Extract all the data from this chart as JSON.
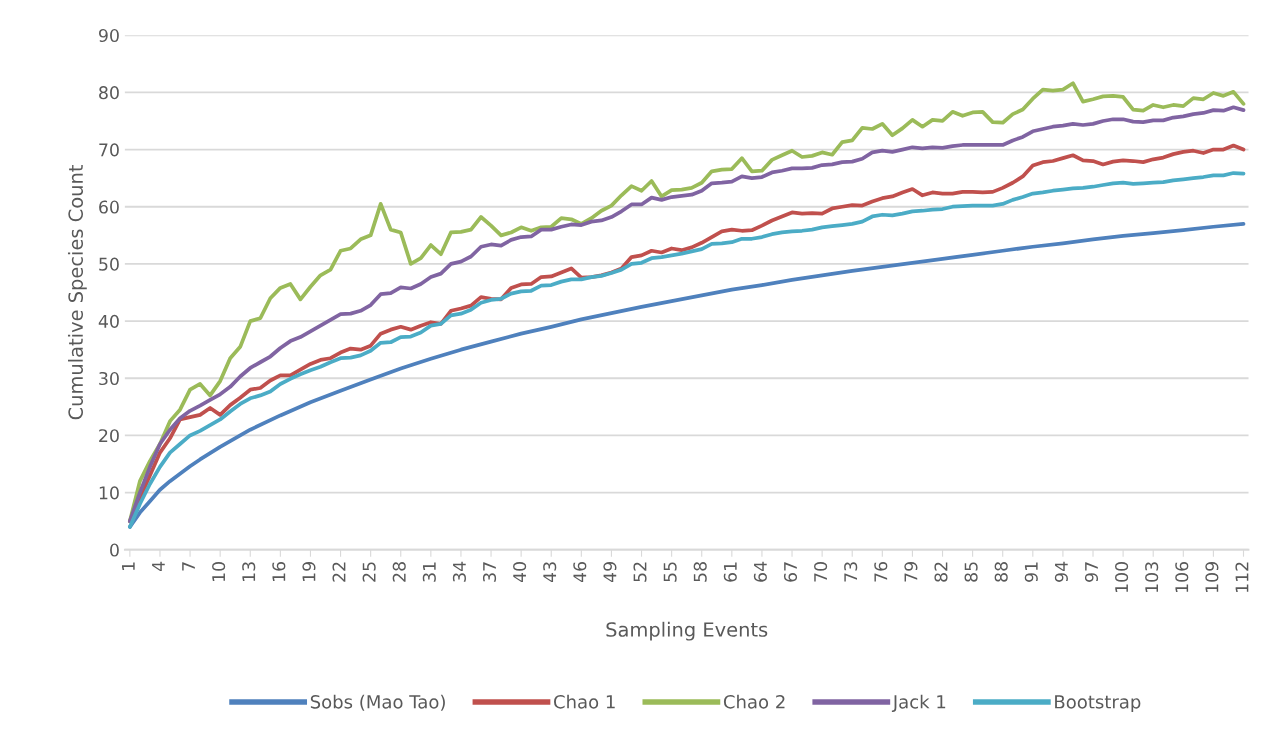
{
  "chart_data": {
    "type": "line",
    "xlabel": "Sampling Events",
    "ylabel": "Cumulative Species Count",
    "x": [
      1,
      2,
      3,
      4,
      5,
      6,
      7,
      8,
      9,
      10,
      11,
      12,
      13,
      14,
      15,
      16,
      17,
      18,
      19,
      20,
      21,
      22,
      23,
      24,
      25,
      26,
      27,
      28,
      29,
      30,
      31,
      32,
      33,
      34,
      35,
      36,
      37,
      38,
      39,
      40,
      41,
      42,
      43,
      44,
      45,
      46,
      47,
      48,
      49,
      50,
      51,
      52,
      53,
      54,
      55,
      56,
      57,
      58,
      59,
      60,
      61,
      62,
      63,
      64,
      65,
      66,
      67,
      68,
      69,
      70,
      71,
      72,
      73,
      74,
      75,
      76,
      77,
      78,
      79,
      80,
      81,
      82,
      83,
      84,
      85,
      86,
      87,
      88,
      89,
      90,
      91,
      92,
      93,
      94,
      95,
      96,
      97,
      98,
      99,
      100,
      101,
      102,
      103,
      104,
      105,
      106,
      107,
      108,
      109,
      110,
      111,
      112
    ],
    "xlim": [
      0.5,
      112.5
    ],
    "xticks": [
      1,
      4,
      7,
      10,
      13,
      16,
      19,
      22,
      25,
      28,
      31,
      34,
      37,
      40,
      43,
      46,
      49,
      52,
      55,
      58,
      61,
      64,
      67,
      70,
      73,
      76,
      79,
      82,
      85,
      88,
      91,
      94,
      97,
      100,
      103,
      106,
      109,
      112
    ],
    "ylim": [
      0,
      90
    ],
    "yticks": [
      0,
      10,
      20,
      30,
      40,
      50,
      60,
      70,
      80,
      90
    ],
    "grid": "y",
    "legend": "bottom",
    "marker": "none",
    "line_style": "solid",
    "series": [
      {
        "name": "Sobs (Mao Tao)",
        "color": "#4f81bd",
        "x": [
          1,
          2,
          3,
          4,
          5,
          6,
          7,
          8,
          10,
          13,
          16,
          19,
          22,
          25,
          28,
          31,
          34,
          37,
          40,
          43,
          46,
          49,
          52,
          55,
          58,
          61,
          64,
          67,
          70,
          73,
          76,
          79,
          82,
          85,
          88,
          91,
          94,
          97,
          100,
          103,
          106,
          109,
          112
        ],
        "values": [
          4,
          6.5,
          8.5,
          10.5,
          12,
          13.3,
          14.6,
          15.8,
          18,
          21,
          23.5,
          25.8,
          27.8,
          29.8,
          31.7,
          33.4,
          35,
          36.4,
          37.8,
          39,
          40.3,
          41.4,
          42.5,
          43.5,
          44.5,
          45.5,
          46.3,
          47.2,
          48,
          48.8,
          49.5,
          50.2,
          50.9,
          51.6,
          52.3,
          53,
          53.6,
          54.3,
          54.9,
          55.4,
          55.9,
          56.5,
          57
        ]
      },
      {
        "name": "Chao 1",
        "color": "#c0504d",
        "values": [
          5,
          9,
          13,
          17,
          19.5,
          22.8,
          23.2,
          23.6,
          24.8,
          23.6,
          25.3,
          26.6,
          28,
          28.3,
          29.6,
          30.5,
          30.5,
          31.5,
          32.5,
          33.2,
          33.5,
          34.5,
          35.2,
          35,
          35.7,
          37.8,
          38.5,
          39,
          38.5,
          39.2,
          39.8,
          39.5,
          41.8,
          42.2,
          42.7,
          44.2,
          43.9,
          43.8,
          45.8,
          46.4,
          46.5,
          47.7,
          47.8,
          48.5,
          49.2,
          47.6,
          47.7,
          48,
          48.5,
          49.2,
          51.2,
          51.5,
          52.3,
          52,
          52.7,
          52.4,
          52.9,
          53.7,
          54.7,
          55.7,
          56,
          55.8,
          55.9,
          56.7,
          57.6,
          58.3,
          59,
          58.8,
          58.9,
          58.8,
          59.7,
          60,
          60.3,
          60.2,
          60.9,
          61.5,
          61.8,
          62.5,
          63.1,
          62,
          62.5,
          62.3,
          62.3,
          62.6,
          62.6,
          62.5,
          62.6,
          63.3,
          64.2,
          65.3,
          67.2,
          67.8,
          68,
          68.5,
          69,
          68.1,
          68,
          67.4,
          67.9,
          68.1,
          68,
          67.8,
          68.3,
          68.6,
          69.2,
          69.6,
          69.8,
          69.4,
          70,
          70,
          70.7,
          70
        ]
      },
      {
        "name": "Chao 2",
        "color": "#9bbb59",
        "values": [
          5,
          12,
          15.5,
          18.5,
          22.5,
          24.5,
          28,
          29,
          27,
          29.5,
          33.5,
          35.5,
          40,
          40.5,
          44,
          45.8,
          46.5,
          43.8,
          46,
          48,
          49,
          52.3,
          52.7,
          54.3,
          55,
          60.5,
          56,
          55.5,
          50,
          51,
          53.3,
          51.7,
          55.5,
          55.6,
          56,
          58.2,
          56.7,
          55,
          55.5,
          56.4,
          55.8,
          56.4,
          56.5,
          58,
          57.8,
          57,
          58,
          59.3,
          60.2,
          62,
          63.6,
          62.8,
          64.5,
          61.8,
          62.9,
          63,
          63.3,
          64.2,
          66.2,
          66.5,
          66.6,
          68.5,
          66.2,
          66.3,
          68.2,
          69,
          69.8,
          68.7,
          68.9,
          69.5,
          69.1,
          71.3,
          71.6,
          73.8,
          73.6,
          74.5,
          72.5,
          73.7,
          75.2,
          74,
          75.2,
          75,
          76.6,
          75.9,
          76.5,
          76.6,
          74.8,
          74.7,
          76.2,
          77,
          78.9,
          80.5,
          80.3,
          80.5,
          81.6,
          78.4,
          78.8,
          79.3,
          79.4,
          79.2,
          77,
          76.8,
          77.8,
          77.4,
          77.8,
          77.6,
          79,
          78.8,
          79.9,
          79.4,
          80.1,
          78
        ]
      },
      {
        "name": "Jack 1",
        "color": "#8064a2",
        "values": [
          5,
          10,
          14.5,
          18.5,
          21,
          23,
          24.3,
          25.2,
          26.2,
          27.2,
          28.5,
          30.3,
          31.8,
          32.8,
          33.8,
          35.3,
          36.5,
          37.2,
          38.2,
          39.2,
          40.2,
          41.2,
          41.3,
          41.8,
          42.8,
          44.7,
          44.9,
          45.9,
          45.7,
          46.5,
          47.7,
          48.3,
          50,
          50.4,
          51.3,
          53,
          53.4,
          53.2,
          54.2,
          54.7,
          54.8,
          56,
          56,
          56.5,
          56.9,
          56.8,
          57.4,
          57.6,
          58.2,
          59.2,
          60.4,
          60.4,
          61.6,
          61.2,
          61.7,
          61.9,
          62.1,
          62.8,
          64.1,
          64.2,
          64.4,
          65.3,
          65,
          65.2,
          66,
          66.3,
          66.7,
          66.7,
          66.8,
          67.3,
          67.4,
          67.8,
          67.9,
          68.4,
          69.5,
          69.8,
          69.6,
          70,
          70.4,
          70.2,
          70.4,
          70.3,
          70.6,
          70.8,
          70.8,
          70.8,
          70.8,
          70.8,
          71.6,
          72.2,
          73.2,
          73.6,
          74,
          74.2,
          74.5,
          74.3,
          74.5,
          75,
          75.3,
          75.3,
          74.9,
          74.8,
          75.1,
          75.1,
          75.6,
          75.8,
          76.2,
          76.4,
          76.9,
          76.8,
          77.4,
          76.9
        ]
      },
      {
        "name": "Bootstrap",
        "color": "#4bacc6",
        "values": [
          4,
          8,
          11.5,
          14.5,
          17,
          18.5,
          20,
          20.8,
          21.8,
          22.8,
          24.2,
          25.5,
          26.5,
          27,
          27.7,
          29,
          29.9,
          30.7,
          31.4,
          32,
          32.8,
          33.5,
          33.6,
          34,
          34.8,
          36.2,
          36.3,
          37.2,
          37.3,
          38,
          39.2,
          39.5,
          41,
          41.3,
          42,
          43.2,
          43.7,
          43.9,
          44.8,
          45.2,
          45.3,
          46.2,
          46.3,
          46.9,
          47.3,
          47.3,
          47.7,
          47.9,
          48.4,
          49,
          50,
          50.2,
          51,
          51.2,
          51.5,
          51.8,
          52.2,
          52.6,
          53.5,
          53.6,
          53.8,
          54.4,
          54.4,
          54.7,
          55.2,
          55.5,
          55.7,
          55.8,
          56,
          56.4,
          56.6,
          56.8,
          57,
          57.4,
          58.3,
          58.6,
          58.5,
          58.8,
          59.2,
          59.3,
          59.5,
          59.6,
          60,
          60.1,
          60.2,
          60.2,
          60.2,
          60.5,
          61.2,
          61.7,
          62.3,
          62.5,
          62.8,
          63,
          63.2,
          63.3,
          63.5,
          63.8,
          64.1,
          64.2,
          64,
          64.1,
          64.2,
          64.3,
          64.6,
          64.8,
          65,
          65.2,
          65.5,
          65.5,
          65.9,
          65.8
        ]
      }
    ]
  }
}
